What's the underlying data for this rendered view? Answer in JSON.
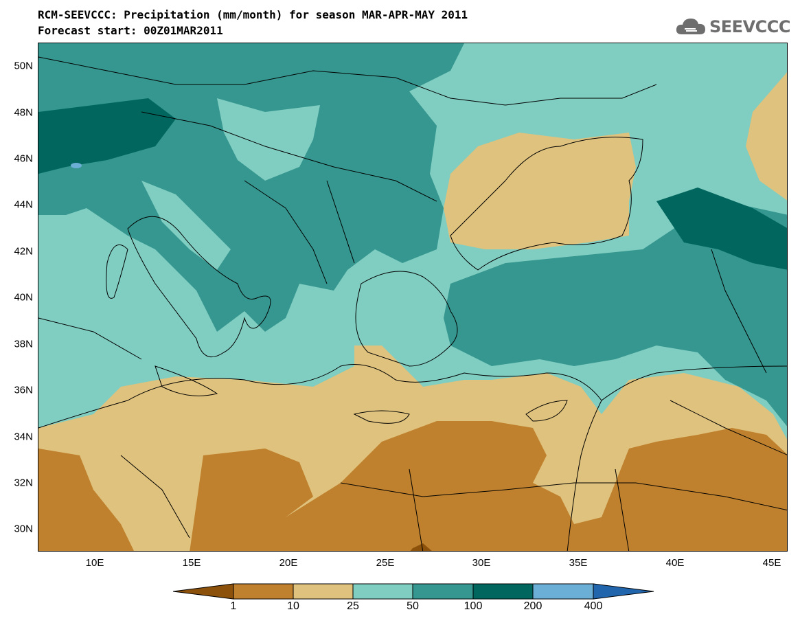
{
  "header": {
    "title": "RCM-SEEVCCC: Precipitation (mm/month) for season MAR-APR-MAY 2011",
    "subtitle": "Forecast start: 00Z01MAR2011"
  },
  "logo": {
    "text": "SEEVCCC",
    "icon": "cloud-icon"
  },
  "map": {
    "lat_labels": [
      "50N",
      "48N",
      "46N",
      "44N",
      "42N",
      "40N",
      "38N",
      "36N",
      "34N",
      "32N",
      "30N"
    ],
    "lon_labels": [
      "10E",
      "15E",
      "20E",
      "25E",
      "30E",
      "35E",
      "40E",
      "45E"
    ]
  },
  "legend": {
    "labels": [
      "1",
      "10",
      "25",
      "50",
      "100",
      "200",
      "400"
    ],
    "colors": [
      "#8c510a",
      "#bf812d",
      "#dfc27d",
      "#80cdc1",
      "#35978f",
      "#01665e",
      "#6baed6",
      "#2166ac"
    ]
  }
}
